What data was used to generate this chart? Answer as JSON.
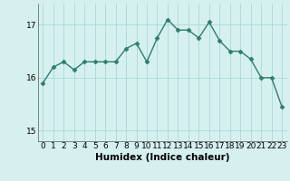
{
  "x": [
    0,
    1,
    2,
    3,
    4,
    5,
    6,
    7,
    8,
    9,
    10,
    11,
    12,
    13,
    14,
    15,
    16,
    17,
    18,
    19,
    20,
    21,
    22,
    23
  ],
  "y": [
    15.9,
    16.2,
    16.3,
    16.15,
    16.3,
    16.3,
    16.3,
    16.3,
    16.55,
    16.65,
    16.3,
    16.75,
    17.1,
    16.9,
    16.9,
    16.75,
    17.05,
    16.7,
    16.5,
    16.5,
    16.35,
    16.0,
    16.0,
    15.45
  ],
  "line_color": "#2e7d6e",
  "marker": "D",
  "marker_size": 2.5,
  "bg_color": "#d6f0f0",
  "grid_color": "#aad8d8",
  "xlabel": "Humidex (Indice chaleur)",
  "ylim": [
    14.8,
    17.4
  ],
  "xlim": [
    -0.5,
    23.5
  ],
  "yticks": [
    15,
    16,
    17
  ],
  "xticks": [
    0,
    1,
    2,
    3,
    4,
    5,
    6,
    7,
    8,
    9,
    10,
    11,
    12,
    13,
    14,
    15,
    16,
    17,
    18,
    19,
    20,
    21,
    22,
    23
  ],
  "xlabel_fontsize": 7.5,
  "tick_fontsize": 6.5,
  "line_width": 1.0
}
